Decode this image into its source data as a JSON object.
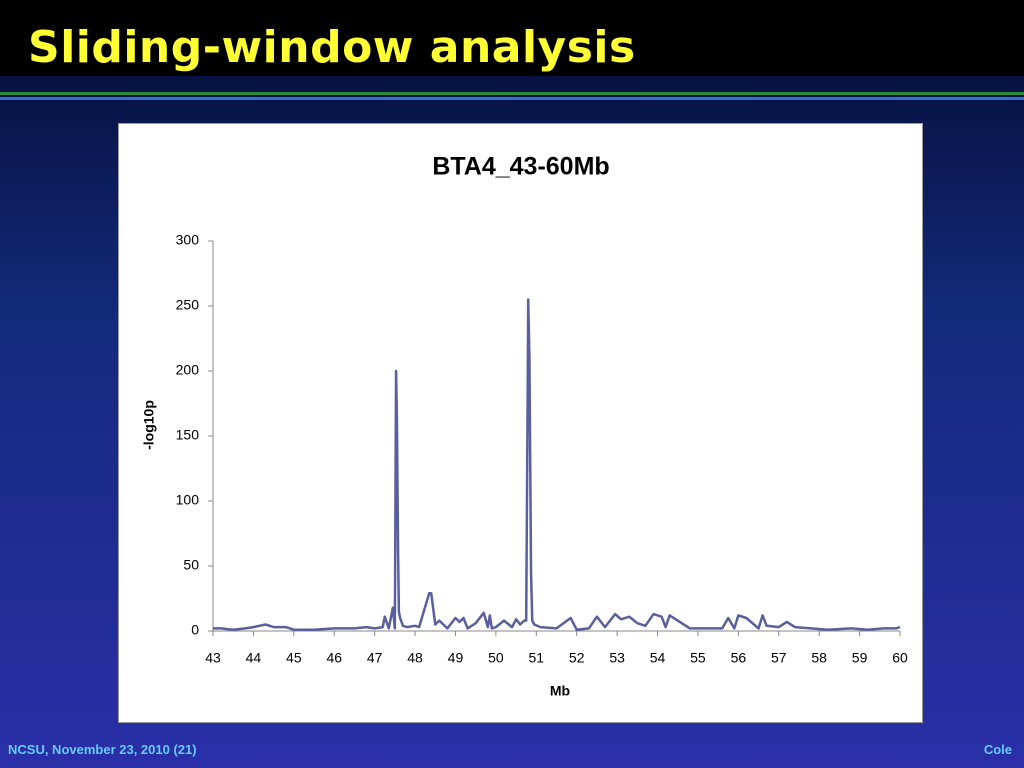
{
  "slide_title": "Sliding-window analysis",
  "footer_left": "NCSU, November 23, 2010 (21)",
  "footer_right": "Cole",
  "chart_data": {
    "type": "line",
    "title": "BTA4_43-60Mb",
    "x_label": "Mb",
    "y_label": "-log10p",
    "x": [
      43,
      43.2,
      43.5,
      43.8,
      44.0,
      44.3,
      44.5,
      44.8,
      45.0,
      45.5,
      46.0,
      46.5,
      46.8,
      47.0,
      47.2,
      47.25,
      47.35,
      47.45,
      47.5,
      47.53,
      47.55,
      47.58,
      47.6,
      47.63,
      47.7,
      47.8,
      48.0,
      48.1,
      48.35,
      48.4,
      48.5,
      48.6,
      48.8,
      49.0,
      49.1,
      49.2,
      49.3,
      49.5,
      49.7,
      49.8,
      49.85,
      49.9,
      50.0,
      50.2,
      50.4,
      50.5,
      50.6,
      50.7,
      50.75,
      50.78,
      50.8,
      50.83,
      50.87,
      50.9,
      50.95,
      51.1,
      51.5,
      51.85,
      52.0,
      52.3,
      52.5,
      52.7,
      52.95,
      53.1,
      53.3,
      53.5,
      53.7,
      53.9,
      54.1,
      54.2,
      54.3,
      54.5,
      54.8,
      55.2,
      55.6,
      55.75,
      55.9,
      56.0,
      56.2,
      56.5,
      56.6,
      56.7,
      57.0,
      57.2,
      57.4,
      57.8,
      58.2,
      58.8,
      59.2,
      59.6,
      59.9,
      60
    ],
    "values": [
      2,
      2,
      1,
      2,
      3,
      5,
      3,
      3,
      1,
      1,
      2,
      2,
      3,
      2,
      3,
      11,
      2,
      18,
      2,
      200,
      165,
      60,
      15,
      10,
      4,
      3,
      4,
      3,
      29,
      29,
      5,
      8,
      2,
      10,
      7,
      10,
      2,
      6,
      14,
      3,
      12,
      2,
      3,
      8,
      3,
      9,
      5,
      8,
      8,
      150,
      255,
      210,
      45,
      8,
      5,
      3,
      2,
      10,
      1,
      2,
      11,
      3,
      13,
      9,
      11,
      6,
      4,
      13,
      11,
      3,
      12,
      8,
      2,
      2,
      2,
      10,
      2,
      12,
      10,
      2,
      12,
      4,
      3,
      7,
      3,
      2,
      1,
      2,
      1,
      2,
      2,
      3
    ],
    "color": "#5a5f9e",
    "xlim": [
      43,
      60
    ],
    "xticks": [
      43,
      44,
      45,
      46,
      47,
      48,
      49,
      50,
      51,
      52,
      53,
      54,
      55,
      56,
      57,
      58,
      59,
      60
    ],
    "ylim": [
      0,
      300
    ],
    "yticks": [
      0,
      50,
      100,
      150,
      200,
      250,
      300
    ]
  }
}
